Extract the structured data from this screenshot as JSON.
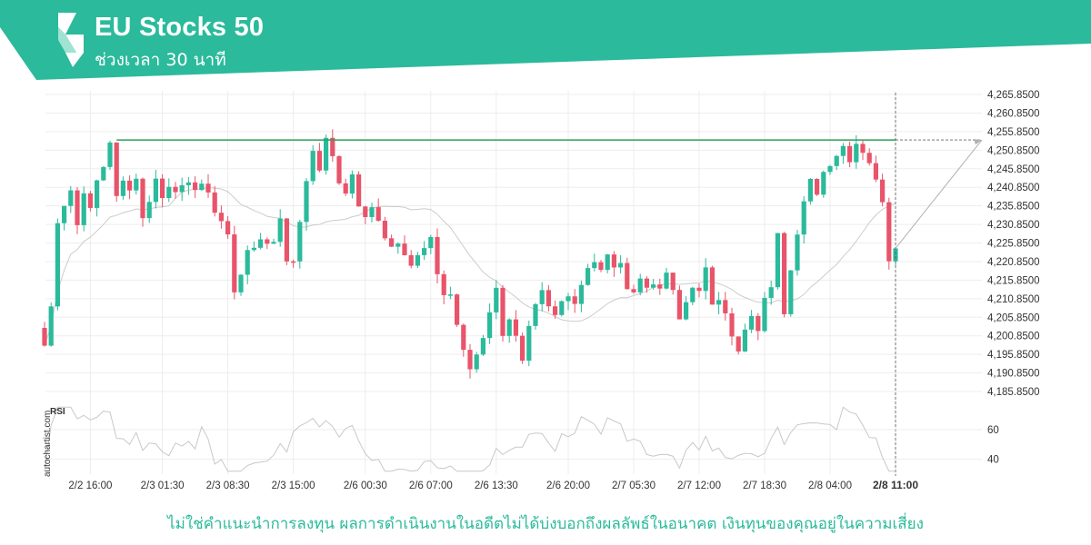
{
  "header": {
    "title": "EU Stocks 50",
    "subtitle": "ช่วงเวลา 30 นาที",
    "bg_color": "#2bba9b"
  },
  "watermark": "autochartist.com",
  "rsi_label": "RSI",
  "disclaimer": "ไม่ใช่คำแนะนำการลงทุน ผลการดำเนินงานในอดีตไม่ได้บ่งบอกถึงผลลัพธ์ในอนาคต เงินทุนของคุณอยู่ในความเสี่ยง",
  "colors": {
    "up": "#2bba9b",
    "down": "#e8546a",
    "resistance": "#2e9e5a",
    "ma": "#cccccc",
    "rsi": "#c8c8c8",
    "grid": "#ededed"
  },
  "chart_data": {
    "type": "candlestick",
    "timeframe": "30m",
    "y_ticks": [
      "4,265.8500",
      "4,260.8500",
      "4,255.8500",
      "4,250.8500",
      "4,245.8500",
      "4,240.8500",
      "4,235.8500",
      "4,230.8500",
      "4,225.8500",
      "4,220.8500",
      "4,215.8500",
      "4,210.8500",
      "4,205.8500",
      "4,200.8500",
      "4,195.8500",
      "4,190.8500",
      "4,185.8500"
    ],
    "y_tick_values": [
      4265.85,
      4260.85,
      4255.85,
      4250.85,
      4245.85,
      4240.85,
      4235.85,
      4230.85,
      4225.85,
      4220.85,
      4215.85,
      4210.85,
      4205.85,
      4200.85,
      4195.85,
      4190.85,
      4185.85
    ],
    "ylim": [
      4185.85,
      4265.85
    ],
    "x_ticks": [
      "2/2 16:00",
      "2/3 01:30",
      "2/3 08:30",
      "2/3 15:00",
      "2/6 00:30",
      "2/6 07:00",
      "2/6 13:30",
      "2/6 20:00",
      "2/7 05:30",
      "2/7 12:00",
      "2/7 18:30",
      "2/8 04:00",
      "2/8 11:00"
    ],
    "x_tick_index": [
      7,
      18,
      28,
      38,
      49,
      59,
      69,
      80,
      90,
      100,
      110,
      120,
      130
    ],
    "n_candles": 131,
    "resistance_level": 4253.6,
    "resistance_start_index": 11,
    "forecast_end_value": 4253.6,
    "rsi_ticks": [
      60,
      40
    ],
    "rsi_range": [
      30,
      77
    ],
    "path_anchors": [
      [
        0,
        4203
      ],
      [
        1,
        4198
      ],
      [
        2,
        4210
      ],
      [
        3,
        4232
      ],
      [
        4,
        4236
      ],
      [
        5,
        4240
      ],
      [
        6,
        4232
      ],
      [
        7,
        4238
      ],
      [
        8,
        4235
      ],
      [
        9,
        4243
      ],
      [
        10,
        4247
      ],
      [
        11,
        4252
      ],
      [
        12,
        4238
      ],
      [
        13,
        4244
      ],
      [
        14,
        4240
      ],
      [
        15,
        4244
      ],
      [
        16,
        4232
      ],
      [
        17,
        4238
      ],
      [
        18,
        4243
      ],
      [
        19,
        4238
      ],
      [
        20,
        4242
      ],
      [
        22,
        4240
      ],
      [
        25,
        4242
      ],
      [
        26,
        4238
      ],
      [
        28,
        4232
      ],
      [
        29,
        4228
      ],
      [
        30,
        4212
      ],
      [
        31,
        4218
      ],
      [
        32,
        4225
      ],
      [
        33,
        4223
      ],
      [
        34,
        4227
      ],
      [
        36,
        4226
      ],
      [
        37,
        4233
      ],
      [
        38,
        4222
      ],
      [
        39,
        4220
      ],
      [
        40,
        4232
      ],
      [
        41,
        4243
      ],
      [
        42,
        4252
      ],
      [
        43,
        4244
      ],
      [
        44,
        4255
      ],
      [
        45,
        4248
      ],
      [
        46,
        4242
      ],
      [
        47,
        4240
      ],
      [
        48,
        4244
      ],
      [
        49,
        4236
      ],
      [
        50,
        4232
      ],
      [
        51,
        4235
      ],
      [
        52,
        4233
      ],
      [
        53,
        4228
      ],
      [
        54,
        4225
      ],
      [
        55,
        4227
      ],
      [
        56,
        4224
      ],
      [
        57,
        4220
      ],
      [
        59,
        4224
      ],
      [
        60,
        4226
      ],
      [
        61,
        4218
      ],
      [
        62,
        4212
      ],
      [
        63,
        4212
      ],
      [
        64,
        4204
      ],
      [
        65,
        4196
      ],
      [
        66,
        4192
      ],
      [
        67,
        4196
      ],
      [
        68,
        4201
      ],
      [
        69,
        4208
      ],
      [
        70,
        4213
      ],
      [
        71,
        4202
      ],
      [
        72,
        4206
      ],
      [
        73,
        4200
      ],
      [
        74,
        4193
      ],
      [
        75,
        4202
      ],
      [
        76,
        4208
      ],
      [
        77,
        4212
      ],
      [
        78,
        4208
      ],
      [
        79,
        4206
      ],
      [
        80,
        4210
      ],
      [
        81,
        4213
      ],
      [
        82,
        4210
      ],
      [
        83,
        4215
      ],
      [
        84,
        4220
      ],
      [
        85,
        4221
      ],
      [
        86,
        4218
      ],
      [
        87,
        4222
      ],
      [
        88,
        4220
      ],
      [
        89,
        4219
      ],
      [
        90,
        4215
      ],
      [
        91,
        4213
      ],
      [
        92,
        4216
      ],
      [
        93,
        4214
      ],
      [
        94,
        4216
      ],
      [
        95,
        4212
      ],
      [
        96,
        4218
      ],
      [
        97,
        4212
      ],
      [
        98,
        4205
      ],
      [
        99,
        4210
      ],
      [
        100,
        4215
      ],
      [
        101,
        4212
      ],
      [
        102,
        4218
      ],
      [
        103,
        4210
      ],
      [
        104,
        4212
      ],
      [
        105,
        4208
      ],
      [
        106,
        4200
      ],
      [
        107,
        4196
      ],
      [
        108,
        4202
      ],
      [
        109,
        4205
      ],
      [
        110,
        4203
      ],
      [
        111,
        4210
      ],
      [
        112,
        4215
      ],
      [
        113,
        4230
      ],
      [
        114,
        4208
      ],
      [
        115,
        4220
      ],
      [
        116,
        4228
      ],
      [
        117,
        4236
      ],
      [
        118,
        4242
      ],
      [
        119,
        4240
      ],
      [
        120,
        4245
      ],
      [
        121,
        4248
      ],
      [
        122,
        4250
      ],
      [
        123,
        4252
      ],
      [
        124,
        4249
      ],
      [
        125,
        4253
      ],
      [
        126,
        4251
      ],
      [
        127,
        4248
      ],
      [
        128,
        4242
      ],
      [
        129,
        4238
      ],
      [
        130,
        4222
      ],
      [
        131,
        4226
      ],
      [
        132,
        4234
      ],
      [
        133,
        4232
      ],
      [
        134,
        4240
      ]
    ]
  }
}
